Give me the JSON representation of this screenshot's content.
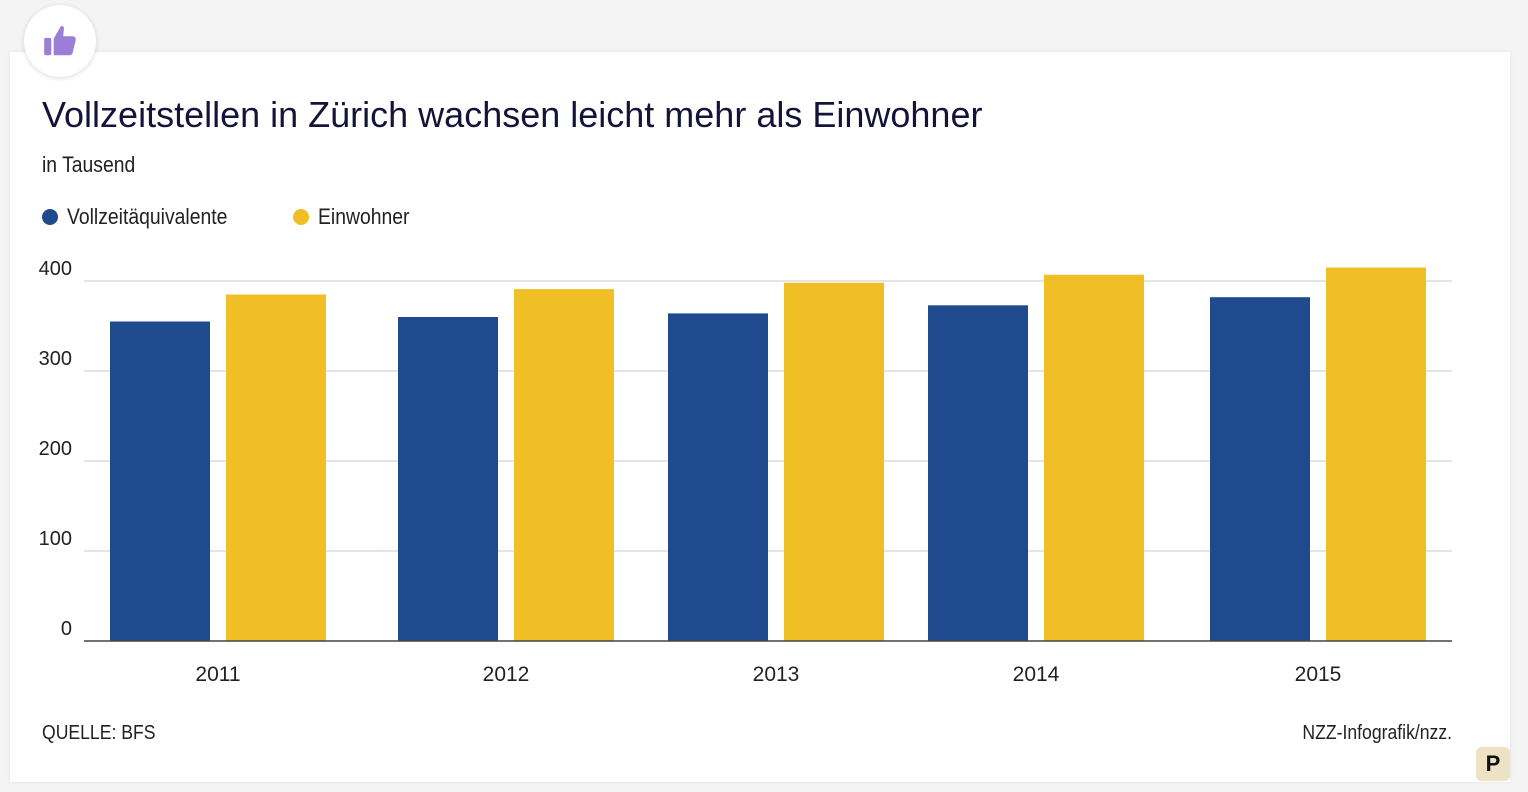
{
  "header": {
    "title": "Vollzeitstellen in Zürich wachsen leicht mehr als Einwohner",
    "subtitle": "in Tausend"
  },
  "badge": {
    "icon": "thumbs-up-icon",
    "color": "#9b7fd6"
  },
  "legend": [
    {
      "label": "Vollzeitäquivalente",
      "color": "#1f4b8e"
    },
    {
      "label": "Einwohner",
      "color": "#f0be25"
    }
  ],
  "chart_data": {
    "type": "bar",
    "categories": [
      "2011",
      "2012",
      "2013",
      "2014",
      "2015"
    ],
    "series": [
      {
        "name": "Vollzeitäquivalente",
        "color": "#1f4b8e",
        "values": [
          355,
          360,
          364,
          373,
          382
        ]
      },
      {
        "name": "Einwohner",
        "color": "#f0be25",
        "values": [
          385,
          391,
          398,
          407,
          415
        ]
      }
    ],
    "yticks": [
      0,
      100,
      200,
      300,
      400
    ],
    "ylim": [
      0,
      400
    ],
    "grid": true,
    "legend_position": "top-left"
  },
  "footer": {
    "source": "QUELLE: BFS",
    "credit": "NZZ-Infografik/nzz."
  },
  "corner_badge": {
    "label": "P"
  }
}
